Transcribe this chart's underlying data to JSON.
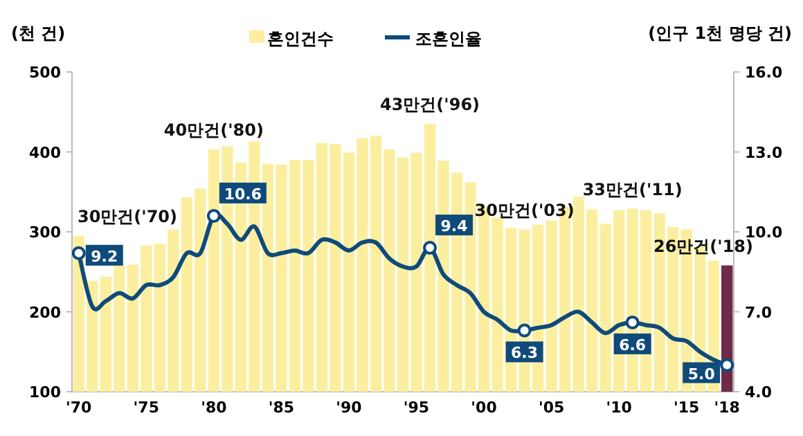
{
  "chart_data": {
    "type": "bar",
    "categories": [
      "'70",
      null,
      null,
      null,
      null,
      "'75",
      null,
      null,
      null,
      null,
      "'80",
      null,
      null,
      null,
      null,
      "'85",
      null,
      null,
      null,
      null,
      "'90",
      null,
      null,
      null,
      null,
      "'95",
      null,
      null,
      null,
      null,
      "'00",
      null,
      null,
      null,
      null,
      "'05",
      null,
      null,
      null,
      null,
      "'10",
      null,
      null,
      null,
      null,
      "'15",
      null,
      null,
      "'18"
    ],
    "series": [
      {
        "name": "혼인건수",
        "color": "#fbef9f",
        "colors": [
          "#fbef9f",
          "#fbef9f",
          "#fbef9f",
          "#fbef9f",
          "#fbef9f",
          "#fbef9f",
          "#fbef9f",
          "#fbef9f",
          "#fbef9f",
          "#fbef9f",
          "#fbef9f",
          "#fbef9f",
          "#fbef9f",
          "#fbef9f",
          "#fbef9f",
          "#fbef9f",
          "#fbef9f",
          "#fbef9f",
          "#fbef9f",
          "#fbef9f",
          "#fbef9f",
          "#fbef9f",
          "#fbef9f",
          "#fbef9f",
          "#fbef9f",
          "#fbef9f",
          "#fbef9f",
          "#fbef9f",
          "#fbef9f",
          "#fbef9f",
          "#fbef9f",
          "#fbef9f",
          "#fbef9f",
          "#fbef9f",
          "#fbef9f",
          "#fbef9f",
          "#fbef9f",
          "#fbef9f",
          "#fbef9f",
          "#fbef9f",
          "#fbef9f",
          "#fbef9f",
          "#fbef9f",
          "#fbef9f",
          "#fbef9f",
          "#fbef9f",
          "#fbef9f",
          "#fbef9f",
          "#6e2b47"
        ],
        "values": [
          295,
          239,
          244,
          258,
          259,
          283,
          285,
          303,
          343,
          354,
          403,
          407,
          387,
          413,
          385,
          384,
          390,
          390,
          411,
          410,
          399,
          417,
          420,
          403,
          393,
          399,
          435,
          389,
          374,
          362,
          332,
          318,
          305,
          303,
          309,
          314,
          331,
          344,
          328,
          310,
          327,
          329,
          327,
          323,
          306,
          303,
          282,
          264,
          258
        ]
      },
      {
        "name": "조혼인율",
        "type": "line",
        "axis": "y2",
        "color": "#0f4a7b",
        "values": [
          9.2,
          7.2,
          7.4,
          7.7,
          7.5,
          8.0,
          8.0,
          8.3,
          9.2,
          9.2,
          10.6,
          10.3,
          9.7,
          10.2,
          9.2,
          9.2,
          9.3,
          9.2,
          9.7,
          9.6,
          9.3,
          9.6,
          9.6,
          9.0,
          8.7,
          8.7,
          9.4,
          8.4,
          8.0,
          7.7,
          7.0,
          6.7,
          6.3,
          6.3,
          6.4,
          6.5,
          6.8,
          7.0,
          6.6,
          6.2,
          6.5,
          6.6,
          6.5,
          6.4,
          6.0,
          5.9,
          5.5,
          5.2,
          5.0
        ],
        "value_labels": [
          "9.2",
          null,
          null,
          null,
          null,
          null,
          null,
          null,
          null,
          null,
          "10.6",
          null,
          null,
          null,
          null,
          null,
          null,
          null,
          null,
          null,
          null,
          null,
          null,
          null,
          null,
          null,
          "9.4",
          null,
          null,
          null,
          null,
          null,
          null,
          "6.3",
          null,
          null,
          null,
          null,
          null,
          null,
          null,
          "6.6",
          null,
          null,
          null,
          null,
          null,
          null,
          "5.0"
        ]
      }
    ],
    "ylabel": "(천 건)",
    "y2label": "(인구 1천 명당 건)",
    "ylim": [
      100,
      500
    ],
    "yticks": [
      100,
      200,
      300,
      400,
      500
    ],
    "y2lim": [
      4,
      16
    ],
    "y2ticks": [
      {
        "value": 4,
        "label": "4.0"
      },
      {
        "value": 7,
        "label": "7.0"
      },
      {
        "value": 10,
        "label": "10.0"
      },
      {
        "value": 13,
        "label": "13.0"
      },
      {
        "value": 16,
        "label": "16.0"
      }
    ],
    "legend": "top",
    "annotations": [
      {
        "text": "30만건('70)",
        "x": "'70",
        "y": 295
      },
      {
        "text": "40만건('80)",
        "x": "'80",
        "y": 403
      },
      {
        "text": "43만건('96)",
        "y": 435
      },
      {
        "text": "30만건('03)",
        "y": 303
      },
      {
        "text": "33만건('11)",
        "y": 329
      },
      {
        "text": "26만건('18)",
        "x": "'18",
        "y": 258
      }
    ]
  }
}
